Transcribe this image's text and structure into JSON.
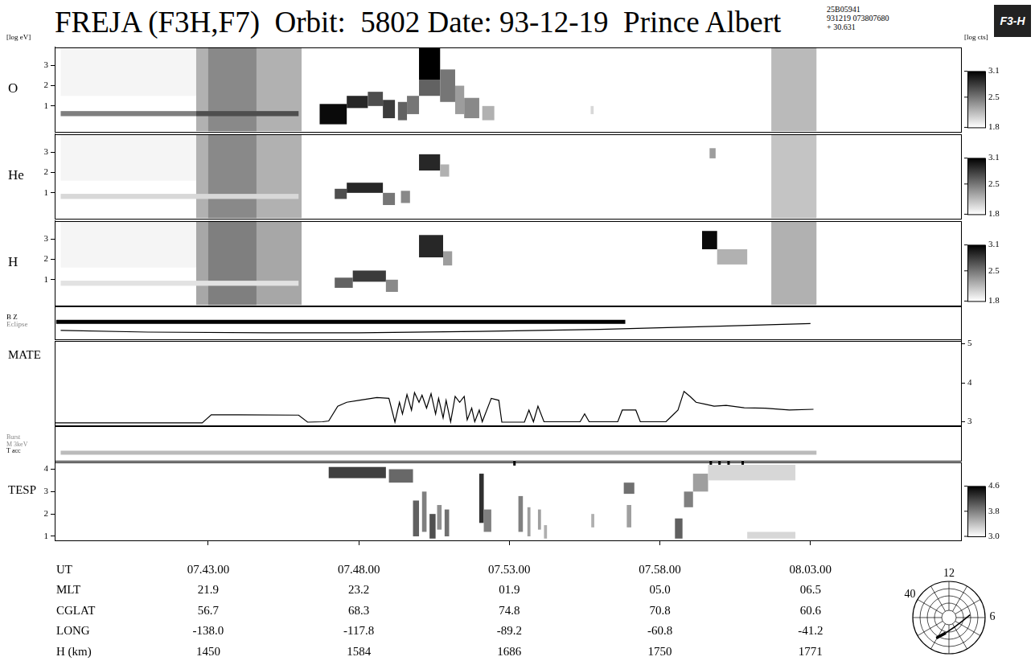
{
  "header": {
    "title": "FREJA (F3H,F7)  Orbit:  5802 Date: 93-12-19  Prince Albert",
    "info": [
      "25B05941",
      "931219 073807680",
      "+ 30.631"
    ],
    "logo": "F3-H"
  },
  "chart_data": [
    {
      "type": "heatmap",
      "title": "O",
      "ylabel": "[log eV]",
      "xlim": [
        37.9,
        68.0
      ],
      "ylim": [
        -0.25,
        3.9
      ],
      "yticks": [
        1,
        2,
        3
      ],
      "tick_labels": "y",
      "colorbar": {
        "label": "[log cts]",
        "range": [
          1.8,
          3.1
        ],
        "ticks": [
          1.8,
          2.5,
          3.1
        ]
      },
      "cells": [
        [
          38.1,
          46.0,
          1.5,
          3.9,
          1.85
        ],
        [
          42.6,
          46.1,
          -0.25,
          3.9,
          2.2
        ],
        [
          43.0,
          44.6,
          -0.25,
          3.9,
          2.4
        ],
        [
          38.1,
          42.6,
          0.5,
          0.75,
          2.45
        ],
        [
          42.6,
          46.0,
          0.5,
          0.75,
          2.7
        ],
        [
          46.7,
          47.6,
          0.1,
          1.1,
          3.05
        ],
        [
          47.6,
          48.3,
          0.9,
          1.5,
          2.9
        ],
        [
          48.3,
          48.8,
          1.0,
          1.7,
          2.7
        ],
        [
          48.8,
          49.2,
          0.4,
          1.3,
          2.8
        ],
        [
          49.3,
          49.6,
          0.3,
          1.2,
          2.6
        ],
        [
          49.6,
          50.0,
          0.6,
          1.5,
          2.5
        ],
        [
          50.0,
          50.7,
          2.3,
          3.85,
          3.1
        ],
        [
          50.0,
          50.7,
          1.5,
          2.3,
          2.6
        ],
        [
          50.7,
          51.2,
          1.2,
          2.8,
          2.5
        ],
        [
          51.2,
          51.5,
          0.6,
          2.0,
          2.3
        ],
        [
          51.5,
          52.0,
          0.4,
          1.4,
          2.4
        ],
        [
          52.1,
          52.5,
          0.3,
          1.0,
          2.2
        ],
        [
          55.7,
          55.8,
          0.6,
          1.0,
          2.0
        ],
        [
          61.7,
          63.2,
          -0.25,
          3.9,
          2.15
        ]
      ]
    },
    {
      "type": "heatmap",
      "title": "He",
      "xlim": [
        37.9,
        68.0
      ],
      "ylim": [
        -0.25,
        3.9
      ],
      "yticks": [
        1,
        2,
        3
      ],
      "tick_labels": "y",
      "colorbar": {
        "range": [
          1.8,
          3.1
        ],
        "ticks": [
          1.8,
          2.5,
          3.1
        ]
      },
      "cells": [
        [
          38.1,
          46.0,
          1.6,
          3.9,
          1.85
        ],
        [
          42.6,
          46.1,
          -0.25,
          3.9,
          2.2
        ],
        [
          43.0,
          44.6,
          -0.25,
          3.9,
          2.4
        ],
        [
          38.1,
          46.0,
          0.7,
          0.95,
          2.0
        ],
        [
          47.2,
          47.6,
          0.7,
          1.2,
          2.7
        ],
        [
          47.6,
          48.8,
          1.0,
          1.5,
          2.9
        ],
        [
          48.8,
          49.2,
          0.4,
          1.0,
          2.5
        ],
        [
          49.4,
          49.7,
          0.5,
          1.1,
          2.4
        ],
        [
          50.0,
          50.7,
          2.1,
          2.9,
          2.9
        ],
        [
          50.7,
          51.0,
          1.8,
          2.4,
          2.2
        ],
        [
          59.65,
          59.85,
          2.7,
          3.2,
          2.3
        ],
        [
          61.7,
          63.2,
          -0.25,
          3.9,
          2.1
        ]
      ]
    },
    {
      "type": "heatmap",
      "title": "H",
      "xlim": [
        37.9,
        68.0
      ],
      "ylim": [
        -0.25,
        3.9
      ],
      "yticks": [
        1,
        2,
        3
      ],
      "tick_labels": "y",
      "colorbar": {
        "range": [
          1.8,
          3.1
        ],
        "ticks": [
          1.8,
          2.5,
          3.1
        ]
      },
      "cells": [
        [
          38.1,
          46.0,
          1.6,
          3.9,
          1.85
        ],
        [
          42.6,
          46.1,
          -0.25,
          3.9,
          2.25
        ],
        [
          43.0,
          44.6,
          -0.25,
          3.9,
          2.45
        ],
        [
          38.1,
          46.0,
          0.7,
          0.95,
          1.95
        ],
        [
          47.2,
          47.8,
          0.6,
          1.1,
          2.6
        ],
        [
          47.8,
          48.9,
          0.9,
          1.45,
          2.8
        ],
        [
          48.9,
          49.3,
          0.4,
          1.0,
          2.4
        ],
        [
          50.0,
          50.8,
          2.1,
          3.2,
          2.9
        ],
        [
          50.8,
          51.1,
          1.7,
          2.4,
          2.3
        ],
        [
          59.4,
          59.9,
          2.5,
          3.4,
          3.05
        ],
        [
          59.9,
          60.9,
          1.75,
          2.5,
          2.2
        ],
        [
          61.7,
          63.2,
          -0.25,
          3.9,
          2.2
        ]
      ]
    },
    {
      "type": "timeline",
      "xlim": [
        37.9,
        68.0
      ],
      "ylim": [
        0,
        1
      ],
      "tick_labels": false,
      "series": [
        {
          "name": "B Z",
          "type": "span",
          "color": "#000000",
          "x": [
            37.95,
            56.85
          ],
          "values": [
            0.53,
            0.53
          ]
        },
        {
          "name": "Eclipse",
          "type": "line",
          "color": "#000000",
          "x": [
            38.1,
            41.0,
            45.0,
            48.0,
            52.0,
            56.0,
            60.0,
            63.0
          ],
          "values": [
            0.27,
            0.22,
            0.2,
            0.2,
            0.24,
            0.3,
            0.4,
            0.48
          ]
        }
      ]
    },
    {
      "type": "line",
      "title": "MATE",
      "xlim": [
        37.9,
        68.0
      ],
      "y2lim": [
        2.92,
        5.08
      ],
      "y2ticks": [
        3,
        4,
        5
      ],
      "tick_labels": "y",
      "series": [
        {
          "axis": "y2",
          "type": "line",
          "color": "#000000",
          "x": [
            37.9,
            42.8,
            43.1,
            44.0,
            46.0,
            46.3,
            46.8,
            47.0,
            47.3,
            47.6,
            48.0,
            48.6,
            49.0,
            49.2,
            49.35,
            49.45,
            49.6,
            49.75,
            49.85,
            50.0,
            50.1,
            50.25,
            50.4,
            50.55,
            50.65,
            50.8,
            50.9,
            51.05,
            51.2,
            51.35,
            51.5,
            51.6,
            51.75,
            51.85,
            52.0,
            52.1,
            52.4,
            52.65,
            52.75,
            53.5,
            53.65,
            53.8,
            53.95,
            54.15,
            55.35,
            55.5,
            55.65,
            56.6,
            56.75,
            57.2,
            57.35,
            58.2,
            58.4,
            58.6,
            58.8,
            59.0,
            59.2,
            59.5,
            59.8,
            60.2,
            60.8,
            61.5,
            62.3,
            63.1
          ],
          "values": [
            2.97,
            2.97,
            3.18,
            3.18,
            3.17,
            2.99,
            3.0,
            3.02,
            3.4,
            3.5,
            3.55,
            3.62,
            3.6,
            2.99,
            3.5,
            3.2,
            3.7,
            3.3,
            3.75,
            3.5,
            3.68,
            3.35,
            3.72,
            3.2,
            3.6,
            3.1,
            3.55,
            3.0,
            3.65,
            3.5,
            3.65,
            3.05,
            3.35,
            3.0,
            3.3,
            3.0,
            3.6,
            3.55,
            2.99,
            2.99,
            3.3,
            3.0,
            3.4,
            3.0,
            3.0,
            3.2,
            3.0,
            3.0,
            3.3,
            3.3,
            3.0,
            3.0,
            3.15,
            3.3,
            3.78,
            3.65,
            3.5,
            3.45,
            3.4,
            3.42,
            3.36,
            3.35,
            3.3,
            3.32
          ]
        }
      ]
    },
    {
      "type": "timeline",
      "xlim": [
        37.9,
        68.0
      ],
      "ylim": [
        0,
        1
      ],
      "tick_labels": false,
      "series": [
        {
          "name": "Burst",
          "type": "marks",
          "color": "#000000",
          "x": [
            53.17,
            59.69,
            59.98,
            60.28,
            60.75
          ]
        },
        {
          "name": "M 3keV",
          "type": "marks",
          "color": "#000000",
          "x": []
        },
        {
          "name": "T acc",
          "type": "span",
          "color": "#bbbbbb",
          "x": [
            38.1,
            63.2
          ],
          "values": [
            0.23,
            0.23
          ]
        }
      ]
    },
    {
      "type": "heatmap",
      "title": "TESP",
      "xlim": [
        37.9,
        68.0
      ],
      "xticks": [
        {
          "value": 43,
          "label": "07.43.00"
        },
        {
          "value": 48,
          "label": "07.48.00"
        },
        {
          "value": 53,
          "label": "07.53.00"
        },
        {
          "value": 58,
          "label": "07.58.00"
        },
        {
          "value": 63,
          "label": "08.03.00"
        }
      ],
      "ylim": [
        0.82,
        4.32
      ],
      "yticks": [
        1,
        2,
        3,
        4
      ],
      "tick_labels": true,
      "colorbar": {
        "range": [
          3.0,
          4.6
        ],
        "ticks": [
          {
            "value": 3.0,
            "label": "3.0"
          },
          3.8,
          4.6
        ]
      },
      "cells": [
        [
          47.0,
          48.9,
          3.6,
          4.1,
          4.2
        ],
        [
          49.0,
          49.8,
          3.4,
          4.0,
          3.95
        ],
        [
          49.8,
          50.0,
          1.0,
          2.6,
          4.0
        ],
        [
          50.1,
          50.25,
          1.2,
          3.0,
          3.8
        ],
        [
          50.35,
          50.55,
          0.9,
          2.0,
          4.1
        ],
        [
          50.6,
          50.75,
          1.3,
          2.4,
          3.7
        ],
        [
          50.85,
          51.0,
          1.0,
          2.2,
          3.9
        ],
        [
          52.0,
          52.15,
          1.6,
          3.8,
          4.3
        ],
        [
          52.15,
          52.4,
          1.2,
          2.2,
          3.8
        ],
        [
          53.3,
          53.45,
          1.2,
          2.8,
          3.8
        ],
        [
          53.6,
          53.7,
          1.0,
          2.3,
          3.6
        ],
        [
          53.95,
          54.05,
          1.3,
          2.2,
          3.6
        ],
        [
          54.15,
          54.25,
          0.9,
          1.5,
          3.5
        ],
        [
          55.72,
          55.82,
          1.4,
          2.0,
          3.5
        ],
        [
          56.8,
          57.15,
          2.9,
          3.4,
          3.9
        ],
        [
          56.9,
          57.05,
          1.4,
          2.4,
          3.6
        ],
        [
          58.5,
          58.75,
          0.9,
          1.8,
          4.0
        ],
        [
          58.8,
          59.1,
          2.3,
          3.0,
          3.8
        ],
        [
          59.1,
          59.6,
          3.0,
          3.8,
          3.6
        ],
        [
          59.6,
          62.5,
          3.5,
          4.2,
          3.25
        ],
        [
          60.9,
          62.5,
          0.9,
          1.2,
          3.25
        ]
      ]
    }
  ],
  "ephemeris": {
    "heads": [
      "UT",
      "MLT",
      "CGLAT",
      "LONG",
      "H (km)"
    ],
    "rows": [
      [
        "21.9",
        "23.2",
        "01.9",
        "05.0",
        "06.5"
      ],
      [
        "56.7",
        "68.3",
        "74.8",
        "70.8",
        "60.6"
      ],
      [
        "-138.0",
        "-117.8",
        "-89.2",
        "-60.8",
        "-41.2"
      ],
      [
        "1450",
        "1584",
        "1686",
        "1750",
        "1771"
      ]
    ]
  },
  "polar": {
    "rings": [
      40,
      50,
      60,
      70,
      80
    ],
    "ring_labels": [
      {
        "value": 40,
        "label": "40"
      }
    ],
    "mlt_labels": [
      {
        "value": 12,
        "label": "12"
      },
      {
        "value": 6,
        "label": "6"
      }
    ],
    "track": [
      [
        21.9,
        56.7
      ],
      [
        23.2,
        68.3
      ],
      [
        1.9,
        74.8
      ],
      [
        5.0,
        70.8
      ],
      [
        6.5,
        60.6
      ]
    ]
  }
}
